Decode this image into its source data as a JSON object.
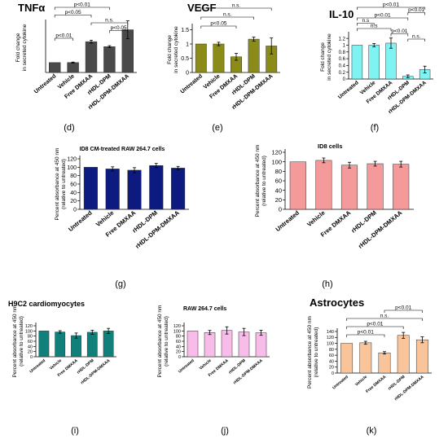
{
  "panel_labels": [
    "(d)",
    "(e)",
    "(f)",
    "(g)",
    "(h)",
    "(i)",
    "(j)",
    "(k)"
  ],
  "chart_data": [
    {
      "id": "d",
      "type": "bar",
      "panel": "(d)",
      "title": "TNFα",
      "ylabel": "Fold change\nin secreted cytokine",
      "categories": [
        "Untreated",
        "Vehicle",
        "Free DMXAA",
        "rHDL-DPM",
        "rHDL-DPM-DMXAA"
      ],
      "values": [
        1.0,
        1.0,
        3.1,
        2.6,
        4.3
      ],
      "errors": [
        0.0,
        0.05,
        0.15,
        0.1,
        0.9
      ],
      "ylim": [
        0,
        5
      ],
      "yticks": [],
      "color": "#4a4a4a",
      "annotations": [
        {
          "text": "p<0.01",
          "from": 0,
          "to": 3
        },
        {
          "text": "p<0.05",
          "from": 0,
          "to": 2
        },
        {
          "text": "n.s.",
          "from": 2,
          "to": 4
        },
        {
          "text": "p<0.05",
          "from": 3,
          "to": 4
        },
        {
          "text": "p<0.01",
          "from": 0,
          "to": 1
        }
      ]
    },
    {
      "id": "e",
      "type": "bar",
      "panel": "(e)",
      "title": "VEGF",
      "ylabel": "Fold change\nin secreted cytokine",
      "categories": [
        "Untreated",
        "Vehicle",
        "Free DMXAA",
        "rHDL-DPM",
        "rHDL-DPM-DMXAA"
      ],
      "values": [
        1.0,
        1.0,
        0.55,
        1.17,
        0.93
      ],
      "errors": [
        0.0,
        0.06,
        0.12,
        0.07,
        0.28
      ],
      "ylim": [
        0,
        1.6
      ],
      "yticks": [
        "0",
        "0.5",
        "1",
        "1.5"
      ],
      "color": "#8b8b1a",
      "annotations": [
        {
          "text": "n.s.",
          "from": 0,
          "to": 4
        },
        {
          "text": "n.s.",
          "from": 0,
          "to": 3
        },
        {
          "text": "p<0.05",
          "from": 0,
          "to": 2
        }
      ]
    },
    {
      "id": "f",
      "type": "bar",
      "panel": "(f)",
      "title": "IL-10",
      "ylabel": "Fold change\nin secreted cytokine",
      "categories": [
        "Untreated",
        "Vehicle",
        "Free DMXAA",
        "rHDL-DPM",
        "rHDL-DPM-DMXAA"
      ],
      "values": [
        1.0,
        1.0,
        1.06,
        0.08,
        0.28
      ],
      "errors": [
        0.0,
        0.05,
        0.15,
        0.04,
        0.1
      ],
      "ylim": [
        0,
        1.3
      ],
      "yticks": [
        "0",
        "0.2",
        "0.4",
        "0.6",
        "0.8",
        "1",
        "1.2"
      ],
      "color": "#7ff2f2",
      "annotations": [
        {
          "text": "p<0.01",
          "from": 0,
          "to": 4
        },
        {
          "text": "p<0.01",
          "from": 3,
          "to": 4
        },
        {
          "text": "p<0.01",
          "from": 0,
          "to": 3
        },
        {
          "text": "n.s",
          "from": 0,
          "to": 1
        },
        {
          "text": "n.s",
          "from": 0,
          "to": 2
        },
        {
          "text": "p<0.01",
          "from": 2,
          "to": 3
        },
        {
          "text": "n.s.",
          "from": 3,
          "to": 4
        }
      ]
    },
    {
      "id": "g",
      "type": "bar",
      "panel": "(g)",
      "title": "ID8 CM-treated RAW 264.7 cells",
      "ylabel": "Percent absorbance at 450 nm\n(relative to untreated)",
      "categories": [
        "Untreated",
        "Vehicle",
        "Free DMXAA",
        "rHDL-DPM",
        "rHDL-DPM-DMXAA"
      ],
      "values": [
        100,
        96,
        93,
        104,
        98
      ],
      "errors": [
        0,
        5,
        6,
        5,
        4
      ],
      "ylim": [
        0,
        120
      ],
      "yticks": [
        "0",
        "20",
        "40",
        "60",
        "80",
        "100",
        "120"
      ],
      "color": "#0d1a80",
      "annotations": []
    },
    {
      "id": "h",
      "type": "bar",
      "panel": "(h)",
      "title": "ID8 cells",
      "ylabel": "Percent absorbance at 450 nm\n(relative to untreated)",
      "categories": [
        "Untreated",
        "Vehicle",
        "Free DMXAA",
        "rHDL-DPM",
        "rHDL-DPM-DMXAA"
      ],
      "values": [
        100,
        103,
        93,
        96,
        95
      ],
      "errors": [
        0,
        5,
        6,
        5,
        6
      ],
      "ylim": [
        0,
        120
      ],
      "yticks": [
        "0",
        "20",
        "40",
        "60",
        "80",
        "100",
        "120"
      ],
      "color": "#f59a9a",
      "annotations": []
    },
    {
      "id": "i",
      "type": "bar",
      "panel": "(i)",
      "title": "H9C2 cardiomyocytes",
      "ylabel": "Percent absorbance at 450 nm\n(relative to untreated)",
      "categories": [
        "Untreated",
        "Vehicle",
        "Free DMXAA",
        "rHDL-DPM",
        "rHDL-DPM-DMXAA"
      ],
      "values": [
        100,
        96,
        82,
        95,
        100
      ],
      "errors": [
        0,
        5,
        10,
        8,
        10
      ],
      "ylim": [
        0,
        120
      ],
      "yticks": [
        "0",
        "20",
        "40",
        "60",
        "80",
        "100",
        "120"
      ],
      "color": "#12807a",
      "annotations": []
    },
    {
      "id": "j",
      "type": "bar",
      "panel": "(j)",
      "title": "RAW 264.7 cells",
      "ylabel": "Percent absorbance at 450 nm\n(relative to untreated)",
      "categories": [
        "Untreated",
        "Vehicle",
        "Free DMXAA",
        "rHDL-DPM",
        "rHDL-DPM-DMXAA"
      ],
      "values": [
        100,
        94,
        102,
        96,
        93
      ],
      "errors": [
        0,
        8,
        14,
        14,
        10
      ],
      "ylim": [
        0,
        120
      ],
      "yticks": [
        "0",
        "20",
        "40",
        "60",
        "80",
        "100",
        "120"
      ],
      "color": "#f7bce8",
      "annotations": []
    },
    {
      "id": "k",
      "type": "bar",
      "panel": "(k)",
      "title": "Astrocytes",
      "ylabel": "Percent absorbance at 450 nm\n(relative to untreated)",
      "categories": [
        "Untreated",
        "Vehicle",
        "Free DMXAA",
        "rHDL-DPM",
        "rHDL-DPM-DMXAA"
      ],
      "values": [
        100,
        102,
        68,
        127,
        112
      ],
      "errors": [
        0,
        5,
        4,
        10,
        10
      ],
      "ylim": [
        0,
        140
      ],
      "yticks": [
        "0",
        "20",
        "40",
        "60",
        "80",
        "100",
        "120",
        "140"
      ],
      "color": "#f9c499",
      "annotations": [
        {
          "text": "p<0.01",
          "from": 2,
          "to": 4
        },
        {
          "text": "n.s.",
          "from": 0,
          "to": 4
        },
        {
          "text": "p<0.01",
          "from": 0,
          "to": 3
        },
        {
          "text": "p<0.01",
          "from": 0,
          "to": 2
        }
      ]
    }
  ]
}
